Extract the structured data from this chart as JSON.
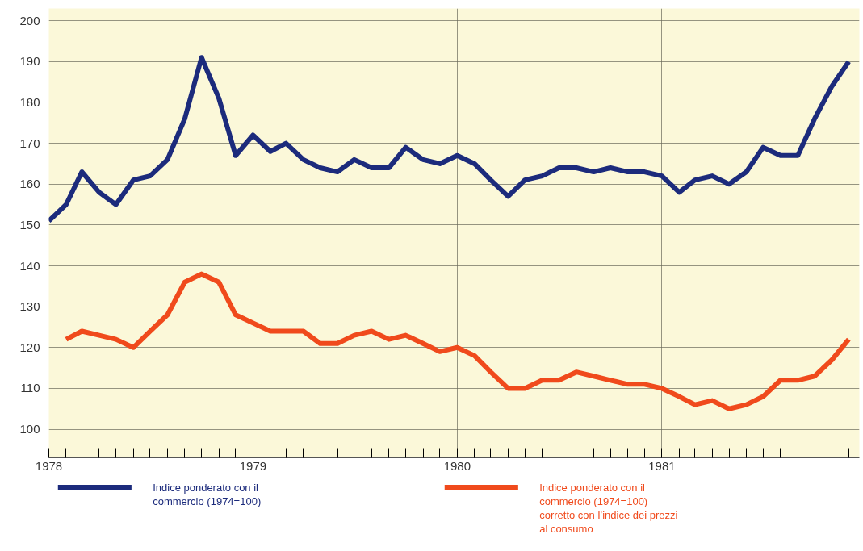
{
  "chart_data": {
    "type": "line",
    "xlim": [
      "1978-01-01",
      "1981-12-20"
    ],
    "xticks": [
      {
        "value": "1978-01",
        "label": "1978"
      },
      {
        "value": "1978-02",
        "label": null
      },
      {
        "value": "1978-03",
        "label": null
      },
      {
        "value": "1978-04",
        "label": null
      },
      {
        "value": "1978-05",
        "label": null
      },
      {
        "value": "1978-06",
        "label": null
      },
      {
        "value": "1978-07",
        "label": null
      },
      {
        "value": "1978-08",
        "label": null
      },
      {
        "value": "1978-09",
        "label": null
      },
      {
        "value": "1978-10",
        "label": null
      },
      {
        "value": "1978-11",
        "label": null
      },
      {
        "value": "1978-12",
        "label": null
      },
      {
        "value": "1979-01",
        "label": "1979"
      },
      {
        "value": "1979-02",
        "label": null
      },
      {
        "value": "1979-03",
        "label": null
      },
      {
        "value": "1979-04",
        "label": null
      },
      {
        "value": "1979-05",
        "label": null
      },
      {
        "value": "1979-06",
        "label": null
      },
      {
        "value": "1979-07",
        "label": null
      },
      {
        "value": "1979-08",
        "label": null
      },
      {
        "value": "1979-09",
        "label": null
      },
      {
        "value": "1979-10",
        "label": null
      },
      {
        "value": "1979-11",
        "label": null
      },
      {
        "value": "1979-12",
        "label": null
      },
      {
        "value": "1980-01",
        "label": "1980"
      },
      {
        "value": "1980-02",
        "label": null
      },
      {
        "value": "1980-03",
        "label": null
      },
      {
        "value": "1980-04",
        "label": null
      },
      {
        "value": "1980-05",
        "label": null
      },
      {
        "value": "1980-06",
        "label": null
      },
      {
        "value": "1980-07",
        "label": null
      },
      {
        "value": "1980-08",
        "label": null
      },
      {
        "value": "1980-09",
        "label": null
      },
      {
        "value": "1980-10",
        "label": null
      },
      {
        "value": "1980-11",
        "label": null
      },
      {
        "value": "1980-12",
        "label": null
      },
      {
        "value": "1981-01",
        "label": "1981"
      },
      {
        "value": "1981-02",
        "label": null
      },
      {
        "value": "1981-03",
        "label": null
      },
      {
        "value": "1981-04",
        "label": null
      },
      {
        "value": "1981-05",
        "label": null
      },
      {
        "value": "1981-06",
        "label": null
      },
      {
        "value": "1981-07",
        "label": null
      },
      {
        "value": "1981-08",
        "label": null
      },
      {
        "value": "1981-09",
        "label": null
      },
      {
        "value": "1981-10",
        "label": null
      },
      {
        "value": "1981-11",
        "label": null
      },
      {
        "value": "1981-12",
        "label": null
      }
    ],
    "ylim": [
      93,
      203
    ],
    "yticks": [
      100,
      110,
      120,
      130,
      140,
      150,
      160,
      170,
      180,
      190,
      200
    ],
    "grid": true,
    "legend": "bottom",
    "line_style": "solid",
    "series": [
      {
        "name": "Indice ponderato con il\ncommercio (1974=100)",
        "color": "#1c2b7c",
        "x": [
          "1978-01",
          "1978-02",
          "1978-03",
          "1978-04",
          "1978-05",
          "1978-06",
          "1978-07",
          "1978-08",
          "1978-09",
          "1978-10",
          "1978-11",
          "1978-12",
          "1979-01",
          "1979-02",
          "1979-03",
          "1979-04",
          "1979-05",
          "1979-06",
          "1979-07",
          "1979-08",
          "1979-09",
          "1979-10",
          "1979-11",
          "1979-12",
          "1980-01",
          "1980-02",
          "1980-03",
          "1980-04",
          "1980-05",
          "1980-06",
          "1980-07",
          "1980-08",
          "1980-09",
          "1980-10",
          "1980-11",
          "1980-12",
          "1981-01",
          "1981-02",
          "1981-03",
          "1981-04",
          "1981-05",
          "1981-06",
          "1981-07",
          "1981-08",
          "1981-09",
          "1981-10",
          "1981-11",
          "1981-12"
        ],
        "values": [
          151,
          155,
          163,
          158,
          155,
          161,
          162,
          166,
          176,
          191,
          181,
          167,
          172,
          168,
          170,
          166,
          164,
          163,
          166,
          164,
          164,
          169,
          166,
          165,
          167,
          165,
          161,
          157,
          161,
          162,
          164,
          164,
          163,
          164,
          163,
          163,
          162,
          158,
          161,
          162,
          160,
          163,
          169,
          167,
          167,
          176,
          184,
          190
        ]
      },
      {
        "name": "Indice ponderato con il\ncommercio (1974=100)\ncorretto con l’indice dei prezzi\nal consumo",
        "color": "#f04a1c",
        "x": [
          "1978-02",
          "1978-03",
          "1978-04",
          "1978-05",
          "1978-06",
          "1978-07",
          "1978-08",
          "1978-09",
          "1978-10",
          "1978-11",
          "1978-12",
          "1979-01",
          "1979-02",
          "1979-03",
          "1979-04",
          "1979-05",
          "1979-06",
          "1979-07",
          "1979-08",
          "1979-09",
          "1979-10",
          "1979-11",
          "1979-12",
          "1980-01",
          "1980-02",
          "1980-03",
          "1980-04",
          "1980-05",
          "1980-06",
          "1980-07",
          "1980-08",
          "1980-09",
          "1980-10",
          "1980-11",
          "1980-12",
          "1981-01",
          "1981-02",
          "1981-03",
          "1981-04",
          "1981-05",
          "1981-06",
          "1981-07",
          "1981-08",
          "1981-09",
          "1981-10",
          "1981-11",
          "1981-12"
        ],
        "values": [
          122,
          124,
          123,
          122,
          120,
          124,
          128,
          136,
          138,
          136,
          128,
          126,
          124,
          124,
          124,
          121,
          121,
          123,
          124,
          122,
          123,
          121,
          119,
          120,
          118,
          114,
          110,
          110,
          112,
          112,
          114,
          113,
          112,
          111,
          111,
          110,
          108,
          106,
          107,
          105,
          106,
          108,
          112,
          112,
          113,
          117,
          122
        ]
      }
    ]
  }
}
